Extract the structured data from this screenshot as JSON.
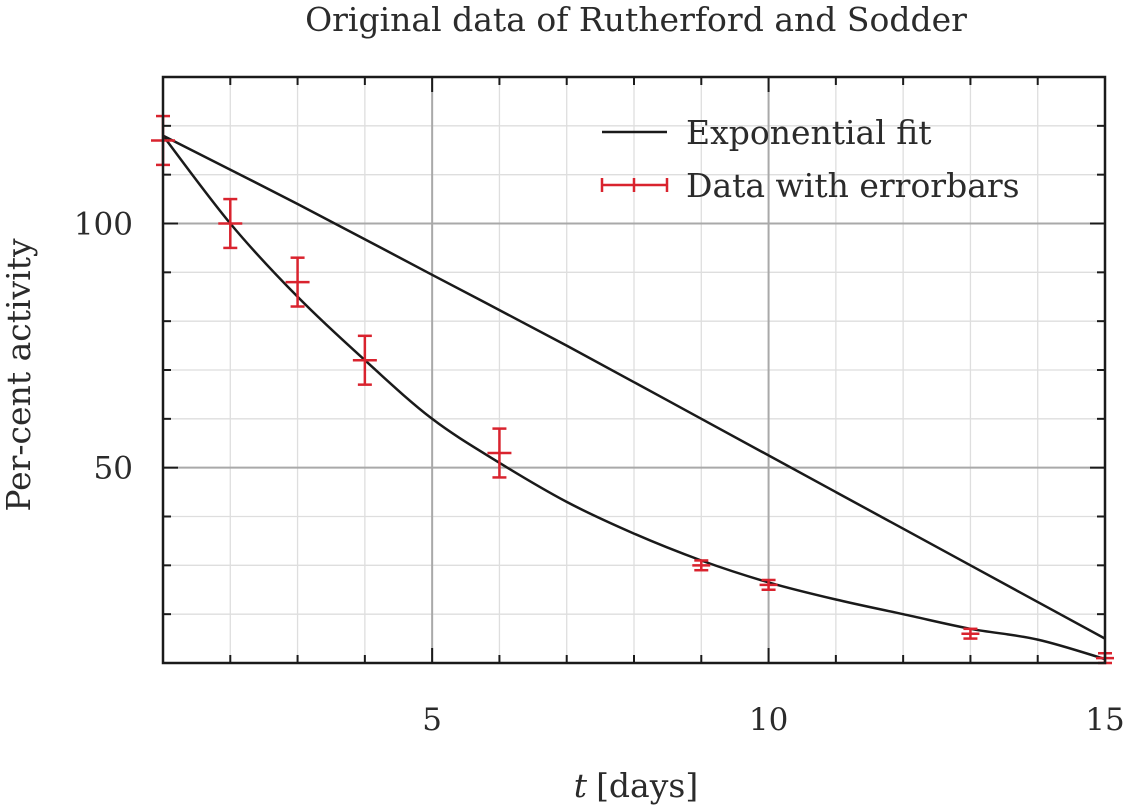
{
  "chart_data": {
    "type": "scatter",
    "title": "Original data of Rutherford and Sodder",
    "xlabel_var": "t",
    "xlabel_unit": "[days]",
    "ylabel": "Per-cent activity",
    "xlim": [
      1,
      15
    ],
    "ylim": [
      10,
      130
    ],
    "x_major_ticks": [
      5,
      10,
      15
    ],
    "x_minor_ticks": [
      2,
      3,
      4,
      6,
      7,
      8,
      9,
      11,
      12,
      13,
      14
    ],
    "y_major_ticks": [
      50,
      100
    ],
    "y_minor_ticks": [
      20,
      30,
      40,
      60,
      70,
      80,
      90,
      110,
      120
    ],
    "grid": true,
    "legend_position": "top-right",
    "series": [
      {
        "name": "Exponential fit",
        "kind": "line",
        "color": "#1a1a1a",
        "curves": [
          {
            "x": [
              1,
              3,
              5,
              7,
              9,
              11,
              13,
              15
            ],
            "y": [
              118,
              104,
              89.5,
              75,
              60,
              45,
              30,
              15
            ]
          },
          {
            "x": [
              1,
              2,
              3,
              4,
              5,
              6,
              7,
              8,
              9,
              10,
              11,
              12,
              13,
              14,
              15
            ],
            "y": [
              118,
              100,
              85,
              72,
              60,
              51,
              43,
              36.5,
              31,
              26.5,
              23,
              20,
              17,
              14.8,
              10.8
            ]
          }
        ]
      },
      {
        "name": "Data with errorbars",
        "kind": "errorbar",
        "color": "#d9232e",
        "x": [
          1,
          2,
          3,
          4,
          6,
          9,
          10,
          13,
          15
        ],
        "y": [
          117,
          100,
          88,
          72,
          53,
          30,
          26,
          16,
          11
        ],
        "yerr": [
          5,
          5,
          5,
          5,
          5,
          1,
          1,
          1,
          1
        ]
      }
    ]
  }
}
